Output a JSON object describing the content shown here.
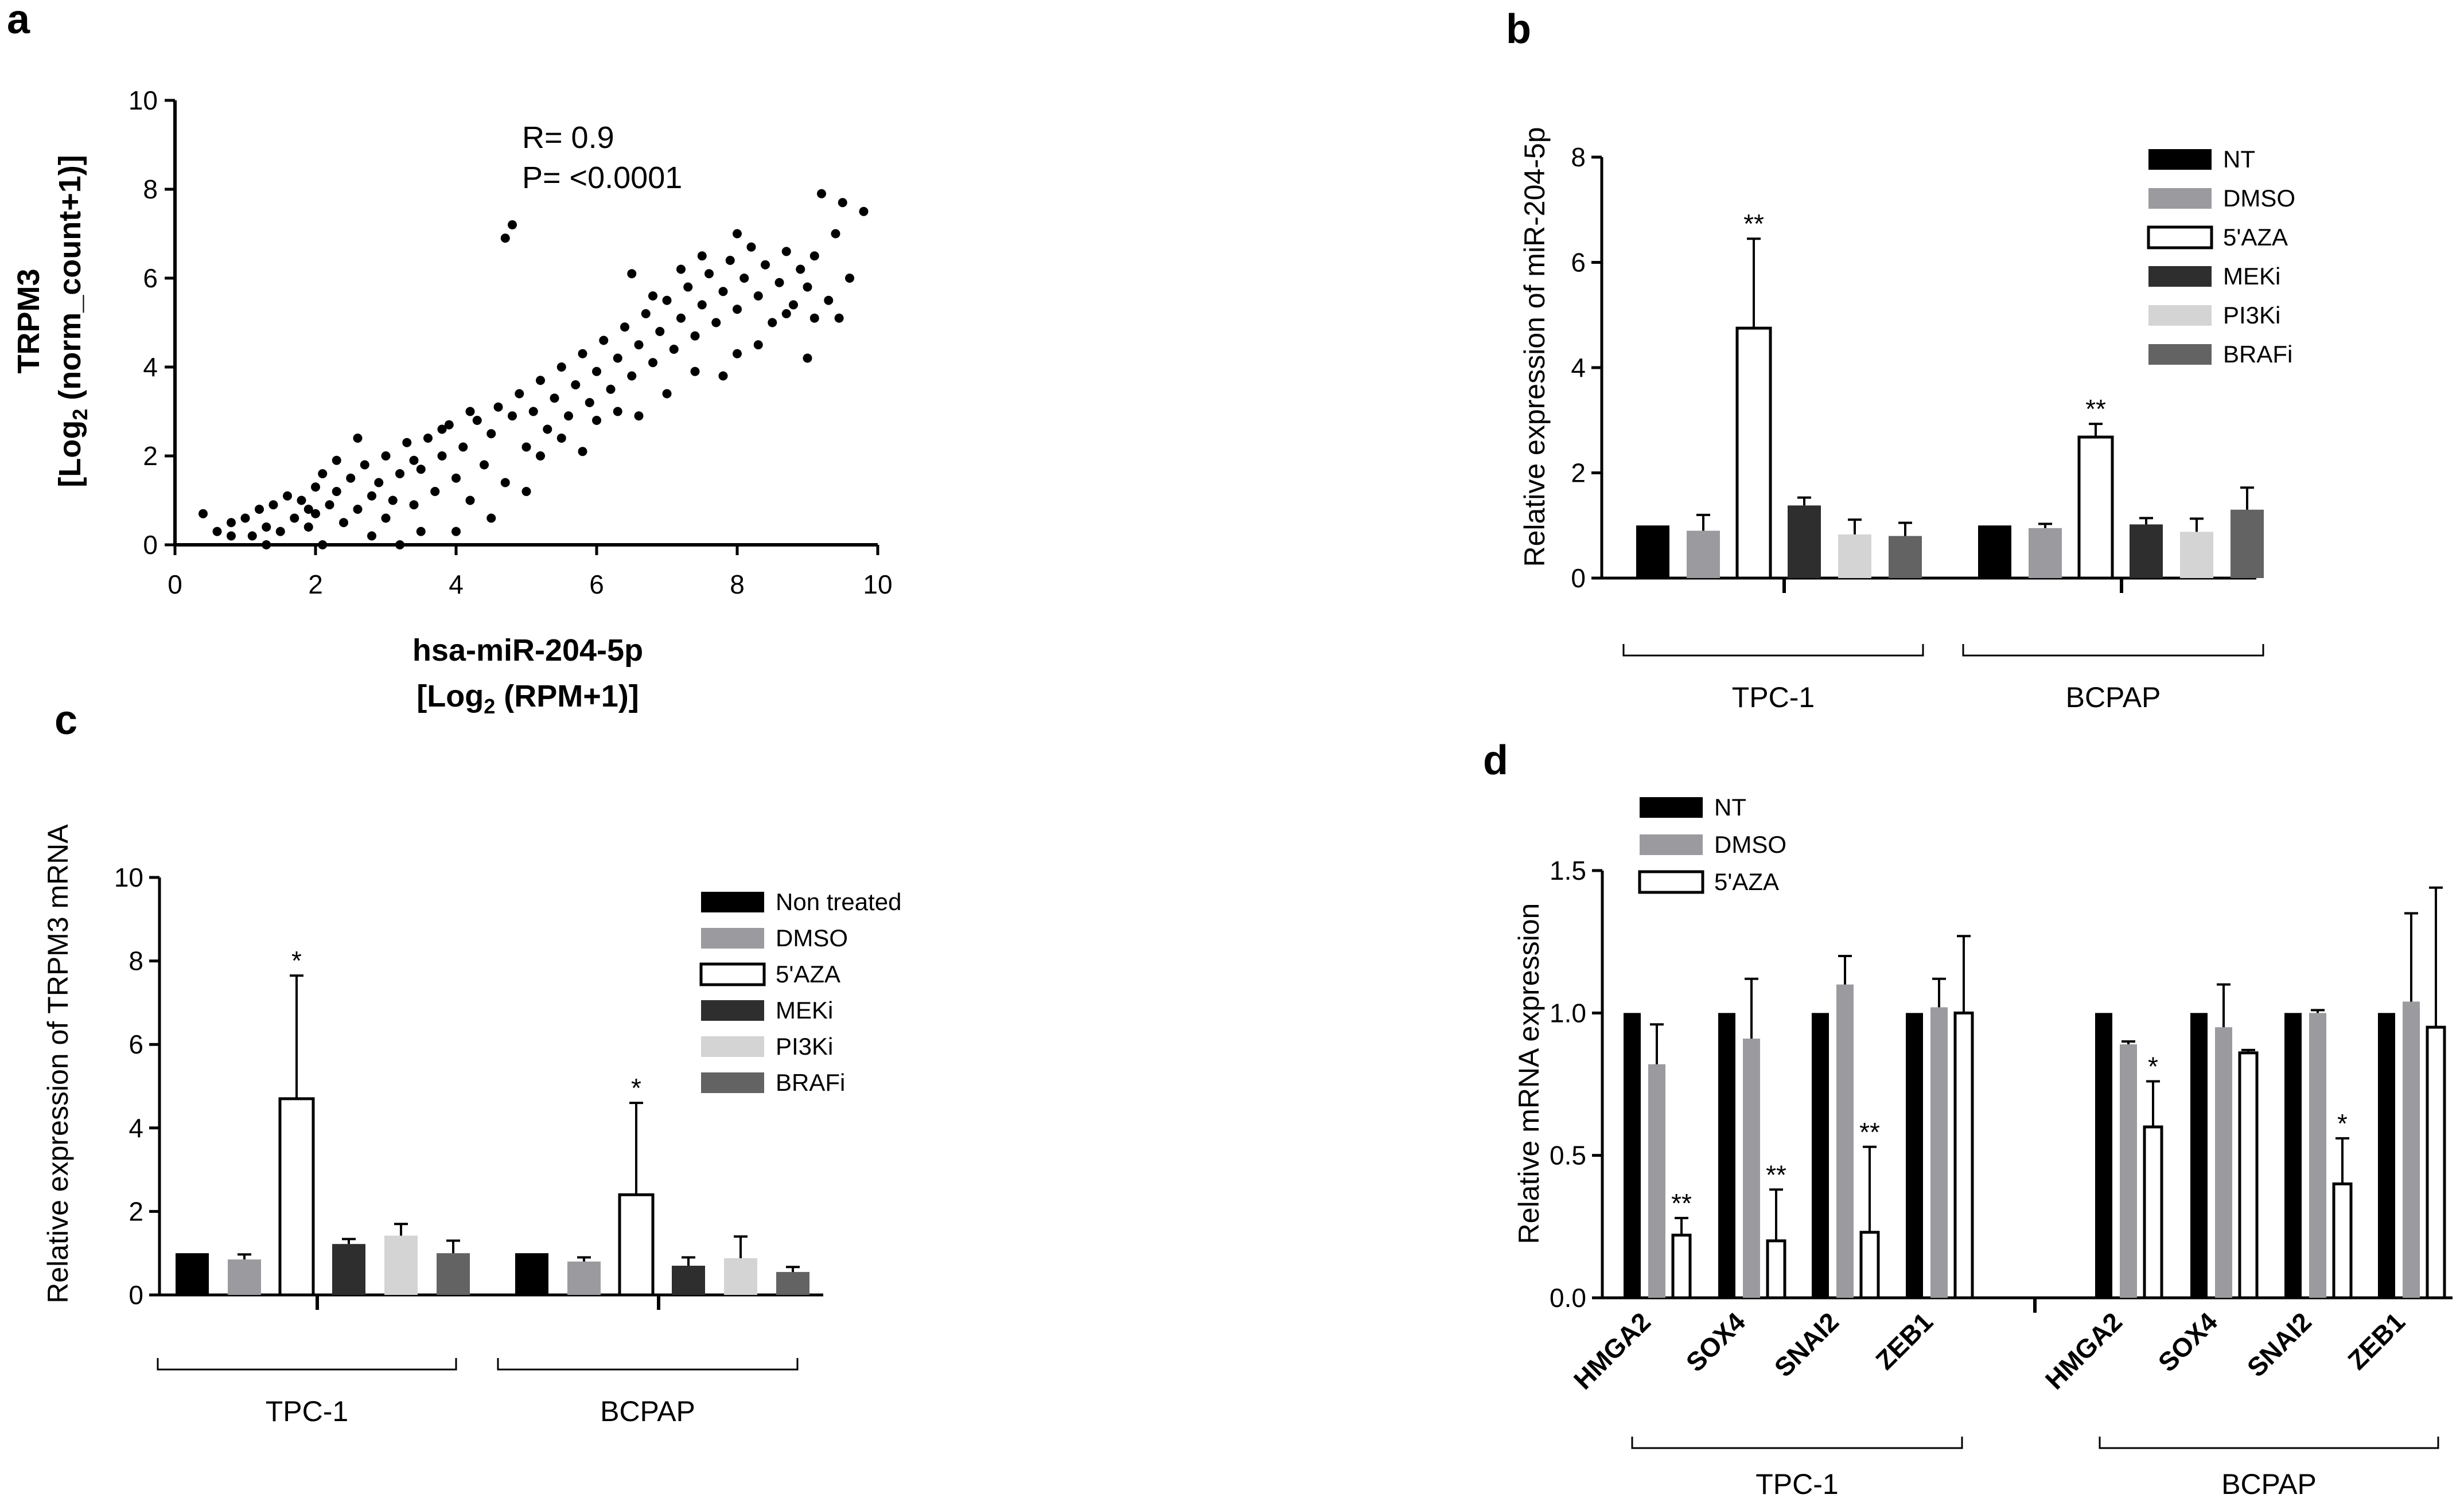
{
  "panels": {
    "a": "a",
    "b": "b",
    "c": "c",
    "d": "d"
  },
  "colors": {
    "NT": "#000000",
    "DMSO": "#9b9b9f",
    "5AZA": "#ffffff",
    "MEKi": "#2e2e2e",
    "PI3Ki": "#d4d4d4",
    "BRAFi": "#636363"
  },
  "chart_data": [
    {
      "panel": "a",
      "type": "scatter",
      "title": "",
      "xlabel_line1": "hsa-miR-204-5p",
      "xlabel_line2_pre": "[Log",
      "xlabel_line2_sub": "2",
      "xlabel_line2_post": " (RPM+1)]",
      "ylabel_line1": "TRPM3",
      "ylabel_line2_pre": "[Log",
      "ylabel_line2_sub": "2",
      "ylabel_line2_post": " (norm_count+1)]",
      "xlim": [
        0,
        10
      ],
      "ylim": [
        0,
        10
      ],
      "xticks": [
        "0",
        "2",
        "4",
        "6",
        "8",
        "10"
      ],
      "yticks": [
        "0",
        "2",
        "4",
        "6",
        "8",
        "10"
      ],
      "annotation_r": "R= 0.9",
      "annotation_p": "P= <0.0001",
      "points": [
        [
          0.4,
          0.7
        ],
        [
          0.6,
          0.3
        ],
        [
          0.8,
          0.5
        ],
        [
          1.0,
          0.6
        ],
        [
          1.1,
          0.2
        ],
        [
          1.2,
          0.8
        ],
        [
          1.3,
          0.4
        ],
        [
          1.4,
          0.9
        ],
        [
          1.5,
          0.3
        ],
        [
          1.6,
          1.1
        ],
        [
          1.7,
          0.6
        ],
        [
          1.8,
          1.0
        ],
        [
          1.9,
          0.4
        ],
        [
          2.0,
          1.3
        ],
        [
          2.0,
          0.7
        ],
        [
          2.1,
          1.6
        ],
        [
          2.2,
          0.9
        ],
        [
          2.3,
          1.2
        ],
        [
          2.4,
          0.5
        ],
        [
          2.5,
          1.5
        ],
        [
          2.6,
          0.8
        ],
        [
          2.7,
          1.8
        ],
        [
          2.8,
          1.1
        ],
        [
          2.9,
          1.4
        ],
        [
          3.0,
          0.6
        ],
        [
          3.0,
          2.0
        ],
        [
          3.1,
          1.0
        ],
        [
          3.2,
          1.6
        ],
        [
          3.3,
          2.3
        ],
        [
          3.4,
          0.9
        ],
        [
          3.5,
          1.7
        ],
        [
          3.6,
          2.4
        ],
        [
          3.7,
          1.2
        ],
        [
          3.8,
          2.0
        ],
        [
          3.9,
          2.7
        ],
        [
          4.0,
          1.5
        ],
        [
          4.1,
          2.2
        ],
        [
          4.2,
          1.0
        ],
        [
          4.3,
          2.8
        ],
        [
          4.4,
          1.8
        ],
        [
          4.5,
          2.5
        ],
        [
          4.6,
          3.1
        ],
        [
          4.7,
          1.4
        ],
        [
          4.8,
          2.9
        ],
        [
          4.9,
          3.4
        ],
        [
          5.0,
          2.2
        ],
        [
          5.1,
          3.0
        ],
        [
          5.2,
          3.7
        ],
        [
          5.3,
          2.6
        ],
        [
          5.4,
          3.3
        ],
        [
          5.5,
          4.0
        ],
        [
          5.6,
          2.9
        ],
        [
          5.7,
          3.6
        ],
        [
          5.8,
          4.3
        ],
        [
          5.9,
          3.2
        ],
        [
          6.0,
          3.9
        ],
        [
          6.1,
          4.6
        ],
        [
          6.2,
          3.5
        ],
        [
          6.3,
          4.2
        ],
        [
          6.4,
          4.9
        ],
        [
          6.5,
          3.8
        ],
        [
          6.6,
          4.5
        ],
        [
          6.7,
          5.2
        ],
        [
          6.8,
          4.1
        ],
        [
          6.9,
          4.8
        ],
        [
          7.0,
          5.5
        ],
        [
          7.1,
          4.4
        ],
        [
          7.2,
          5.1
        ],
        [
          7.3,
          5.8
        ],
        [
          7.4,
          4.7
        ],
        [
          7.5,
          5.4
        ],
        [
          7.6,
          6.1
        ],
        [
          7.7,
          5.0
        ],
        [
          7.8,
          5.7
        ],
        [
          7.9,
          6.4
        ],
        [
          8.0,
          5.3
        ],
        [
          8.1,
          6.0
        ],
        [
          8.2,
          6.7
        ],
        [
          8.3,
          5.6
        ],
        [
          8.4,
          6.3
        ],
        [
          8.5,
          5.0
        ],
        [
          8.6,
          5.9
        ],
        [
          8.7,
          6.6
        ],
        [
          8.8,
          5.4
        ],
        [
          8.9,
          6.2
        ],
        [
          9.0,
          5.8
        ],
        [
          9.1,
          6.5
        ],
        [
          9.2,
          7.9
        ],
        [
          9.3,
          5.5
        ],
        [
          9.4,
          7.0
        ],
        [
          9.5,
          7.7
        ],
        [
          9.6,
          6.0
        ],
        [
          9.8,
          7.5
        ],
        [
          9.45,
          5.1
        ],
        [
          9.0,
          4.2
        ],
        [
          8.7,
          5.2
        ],
        [
          4.8,
          7.2
        ],
        [
          4.7,
          6.9
        ],
        [
          8.0,
          7.0
        ],
        [
          7.5,
          6.5
        ],
        [
          6.5,
          6.1
        ],
        [
          6.8,
          5.6
        ],
        [
          7.2,
          6.2
        ],
        [
          5.2,
          2.0
        ],
        [
          5.5,
          2.4
        ],
        [
          6.0,
          2.8
        ],
        [
          6.3,
          3.0
        ],
        [
          7.0,
          3.4
        ],
        [
          7.4,
          3.9
        ],
        [
          8.0,
          4.3
        ],
        [
          3.5,
          0.3
        ],
        [
          2.8,
          0.2
        ],
        [
          4.5,
          0.6
        ],
        [
          5.0,
          1.2
        ],
        [
          3.2,
          0.0
        ],
        [
          2.1,
          0.0
        ],
        [
          1.3,
          0.0
        ],
        [
          4.0,
          0.3
        ],
        [
          2.6,
          2.4
        ],
        [
          3.8,
          2.6
        ],
        [
          4.2,
          3.0
        ],
        [
          3.4,
          1.9
        ],
        [
          2.3,
          1.9
        ],
        [
          1.9,
          0.8
        ],
        [
          0.8,
          0.2
        ],
        [
          5.8,
          2.1
        ],
        [
          6.6,
          2.9
        ],
        [
          7.8,
          3.8
        ],
        [
          8.3,
          4.5
        ],
        [
          9.1,
          5.1
        ]
      ]
    },
    {
      "panel": "b",
      "type": "bar",
      "ylabel": "Relative expression of miR-204-5p",
      "ylim": [
        0,
        8
      ],
      "yticks": [
        "0",
        "2",
        "4",
        "6",
        "8"
      ],
      "groups": [
        "TPC-1",
        "BCPAP"
      ],
      "legend": [
        "NT",
        "DMSO",
        "5'AZA",
        "MEKi",
        "PI3Ki",
        "BRAFi"
      ],
      "series": [
        {
          "name": "NT",
          "values": [
            1.0,
            1.0
          ],
          "errors": [
            0,
            0
          ]
        },
        {
          "name": "DMSO",
          "values": [
            0.9,
            0.95
          ],
          "errors": [
            0.3,
            0.08
          ]
        },
        {
          "name": "5'AZA",
          "values": [
            4.75,
            2.68
          ],
          "errors": [
            1.7,
            0.25
          ]
        },
        {
          "name": "MEKi",
          "values": [
            1.38,
            1.02
          ],
          "errors": [
            0.15,
            0.12
          ]
        },
        {
          "name": "PI3Ki",
          "values": [
            0.83,
            0.88
          ],
          "errors": [
            0.28,
            0.25
          ]
        },
        {
          "name": "BRAFi",
          "values": [
            0.8,
            1.3
          ],
          "errors": [
            0.25,
            0.42
          ]
        }
      ],
      "sig": [
        [
          "",
          "",
          "**",
          "",
          "",
          ""
        ],
        [
          "",
          "",
          "**",
          "",
          "",
          ""
        ]
      ]
    },
    {
      "panel": "c",
      "type": "bar",
      "ylabel": "Relative expression of TRPM3 mRNA",
      "ylim": [
        0,
        10
      ],
      "yticks": [
        "0",
        "2",
        "4",
        "6",
        "8",
        "10"
      ],
      "groups": [
        "TPC-1",
        "BCPAP"
      ],
      "legend": [
        "Non treated",
        "DMSO",
        "5'AZA",
        "MEKi",
        "PI3Ki",
        "BRAFi"
      ],
      "series": [
        {
          "name": "Non treated",
          "values": [
            1.0,
            1.0
          ],
          "errors": [
            0,
            0
          ]
        },
        {
          "name": "DMSO",
          "values": [
            0.85,
            0.8
          ],
          "errors": [
            0.12,
            0.1
          ]
        },
        {
          "name": "5'AZA",
          "values": [
            4.7,
            2.4
          ],
          "errors": [
            2.95,
            2.2
          ]
        },
        {
          "name": "MEKi",
          "values": [
            1.22,
            0.7
          ],
          "errors": [
            0.12,
            0.2
          ]
        },
        {
          "name": "PI3Ki",
          "values": [
            1.42,
            0.88
          ],
          "errors": [
            0.28,
            0.52
          ]
        },
        {
          "name": "BRAFi",
          "values": [
            1.0,
            0.55
          ],
          "errors": [
            0.3,
            0.12
          ]
        }
      ],
      "sig": [
        [
          "",
          "",
          "*",
          "",
          "",
          ""
        ],
        [
          "",
          "",
          "*",
          "",
          "",
          ""
        ]
      ]
    },
    {
      "panel": "d",
      "type": "bar",
      "ylabel": "Relative mRNA expression",
      "ylim": [
        0,
        1.5
      ],
      "yticks": [
        "0.0",
        "0.5",
        "1.0",
        "1.5"
      ],
      "categories": [
        "HMGA2",
        "SOX4",
        "SNAI2",
        "ZEB1",
        "HMGA2",
        "SOX4",
        "SNAI2",
        "ZEB1"
      ],
      "groups": [
        "TPC-1",
        "BCPAP"
      ],
      "legend": [
        "NT",
        "DMSO",
        "5'AZA"
      ],
      "series": [
        {
          "name": "NT",
          "values": [
            1.0,
            1.0,
            1.0,
            1.0,
            1.0,
            1.0,
            1.0,
            1.0
          ],
          "errors": [
            0,
            0,
            0,
            0,
            0,
            0,
            0,
            0
          ]
        },
        {
          "name": "DMSO",
          "values": [
            0.82,
            0.91,
            1.1,
            1.02,
            0.89,
            0.95,
            1.0,
            1.04
          ],
          "errors": [
            0.14,
            0.21,
            0.1,
            0.1,
            0.01,
            0.15,
            0.01,
            0.31
          ]
        },
        {
          "name": "5'AZA",
          "values": [
            0.22,
            0.2,
            0.23,
            1.0,
            0.6,
            0.86,
            0.4,
            0.95
          ],
          "errors": [
            0.06,
            0.18,
            0.3,
            0.27,
            0.16,
            0.01,
            0.16,
            0.49
          ]
        }
      ],
      "sig": [
        [
          "",
          "",
          "**"
        ],
        [
          "",
          "",
          "**"
        ],
        [
          "",
          "",
          "**"
        ],
        [
          "",
          "",
          ""
        ],
        [
          "",
          "",
          "*"
        ],
        [
          "",
          "",
          ""
        ],
        [
          "",
          "",
          "*"
        ],
        [
          "",
          "",
          ""
        ]
      ]
    }
  ]
}
